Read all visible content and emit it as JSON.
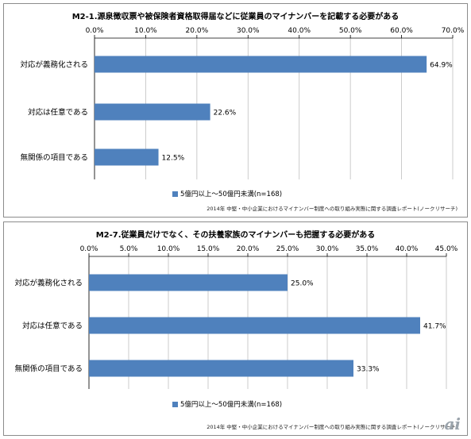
{
  "accent_color": "#4f81bd",
  "logo_text": "ai",
  "chart_data": [
    {
      "type": "bar",
      "orientation": "horizontal",
      "title": "M2-1.源泉徴収票や被保険者資格取得届などに従業員のマイナンバーを記載する必要がある",
      "categories": [
        "対応が義務化される",
        "対応は任意である",
        "無関係の項目である"
      ],
      "series": [
        {
          "name": "5億円以上～50億円未満(n=168)",
          "values": [
            64.9,
            22.6,
            12.5
          ]
        }
      ],
      "value_labels": [
        "64.9%",
        "22.6%",
        "12.5%"
      ],
      "xlim": [
        0,
        70
      ],
      "ticks": [
        "0.0%",
        "10.0%",
        "20.0%",
        "30.0%",
        "40.0%",
        "50.0%",
        "60.0%",
        "70.0%"
      ],
      "grid": true,
      "legend": "bottom-left",
      "footnote": "2014年 中堅・中小企業におけるマイナンバー制度への取り組み実態に関する調査レポート(ノークリサーチ)"
    },
    {
      "type": "bar",
      "orientation": "horizontal",
      "title": "M2-7.従業員だけでなく、その扶養家族のマイナンバーも把握する必要がある",
      "categories": [
        "対応が義務化される",
        "対応は任意である",
        "無関係の項目である"
      ],
      "series": [
        {
          "name": "5億円以上～50億円未満(n=168)",
          "values": [
            25.0,
            41.7,
            33.3
          ]
        }
      ],
      "value_labels": [
        "25.0%",
        "41.7%",
        "33.3%"
      ],
      "xlim": [
        0,
        45
      ],
      "ticks": [
        "0.0%",
        "5.0%",
        "10.0%",
        "15.0%",
        "20.0%",
        "25.0%",
        "30.0%",
        "35.0%",
        "40.0%",
        "45.0%"
      ],
      "grid": true,
      "legend": "bottom-left",
      "footnote": "2014年 中堅・中小企業におけるマイナンバー制度への取り組み実態に関する調査レポート(ノークリサーチ)"
    }
  ]
}
